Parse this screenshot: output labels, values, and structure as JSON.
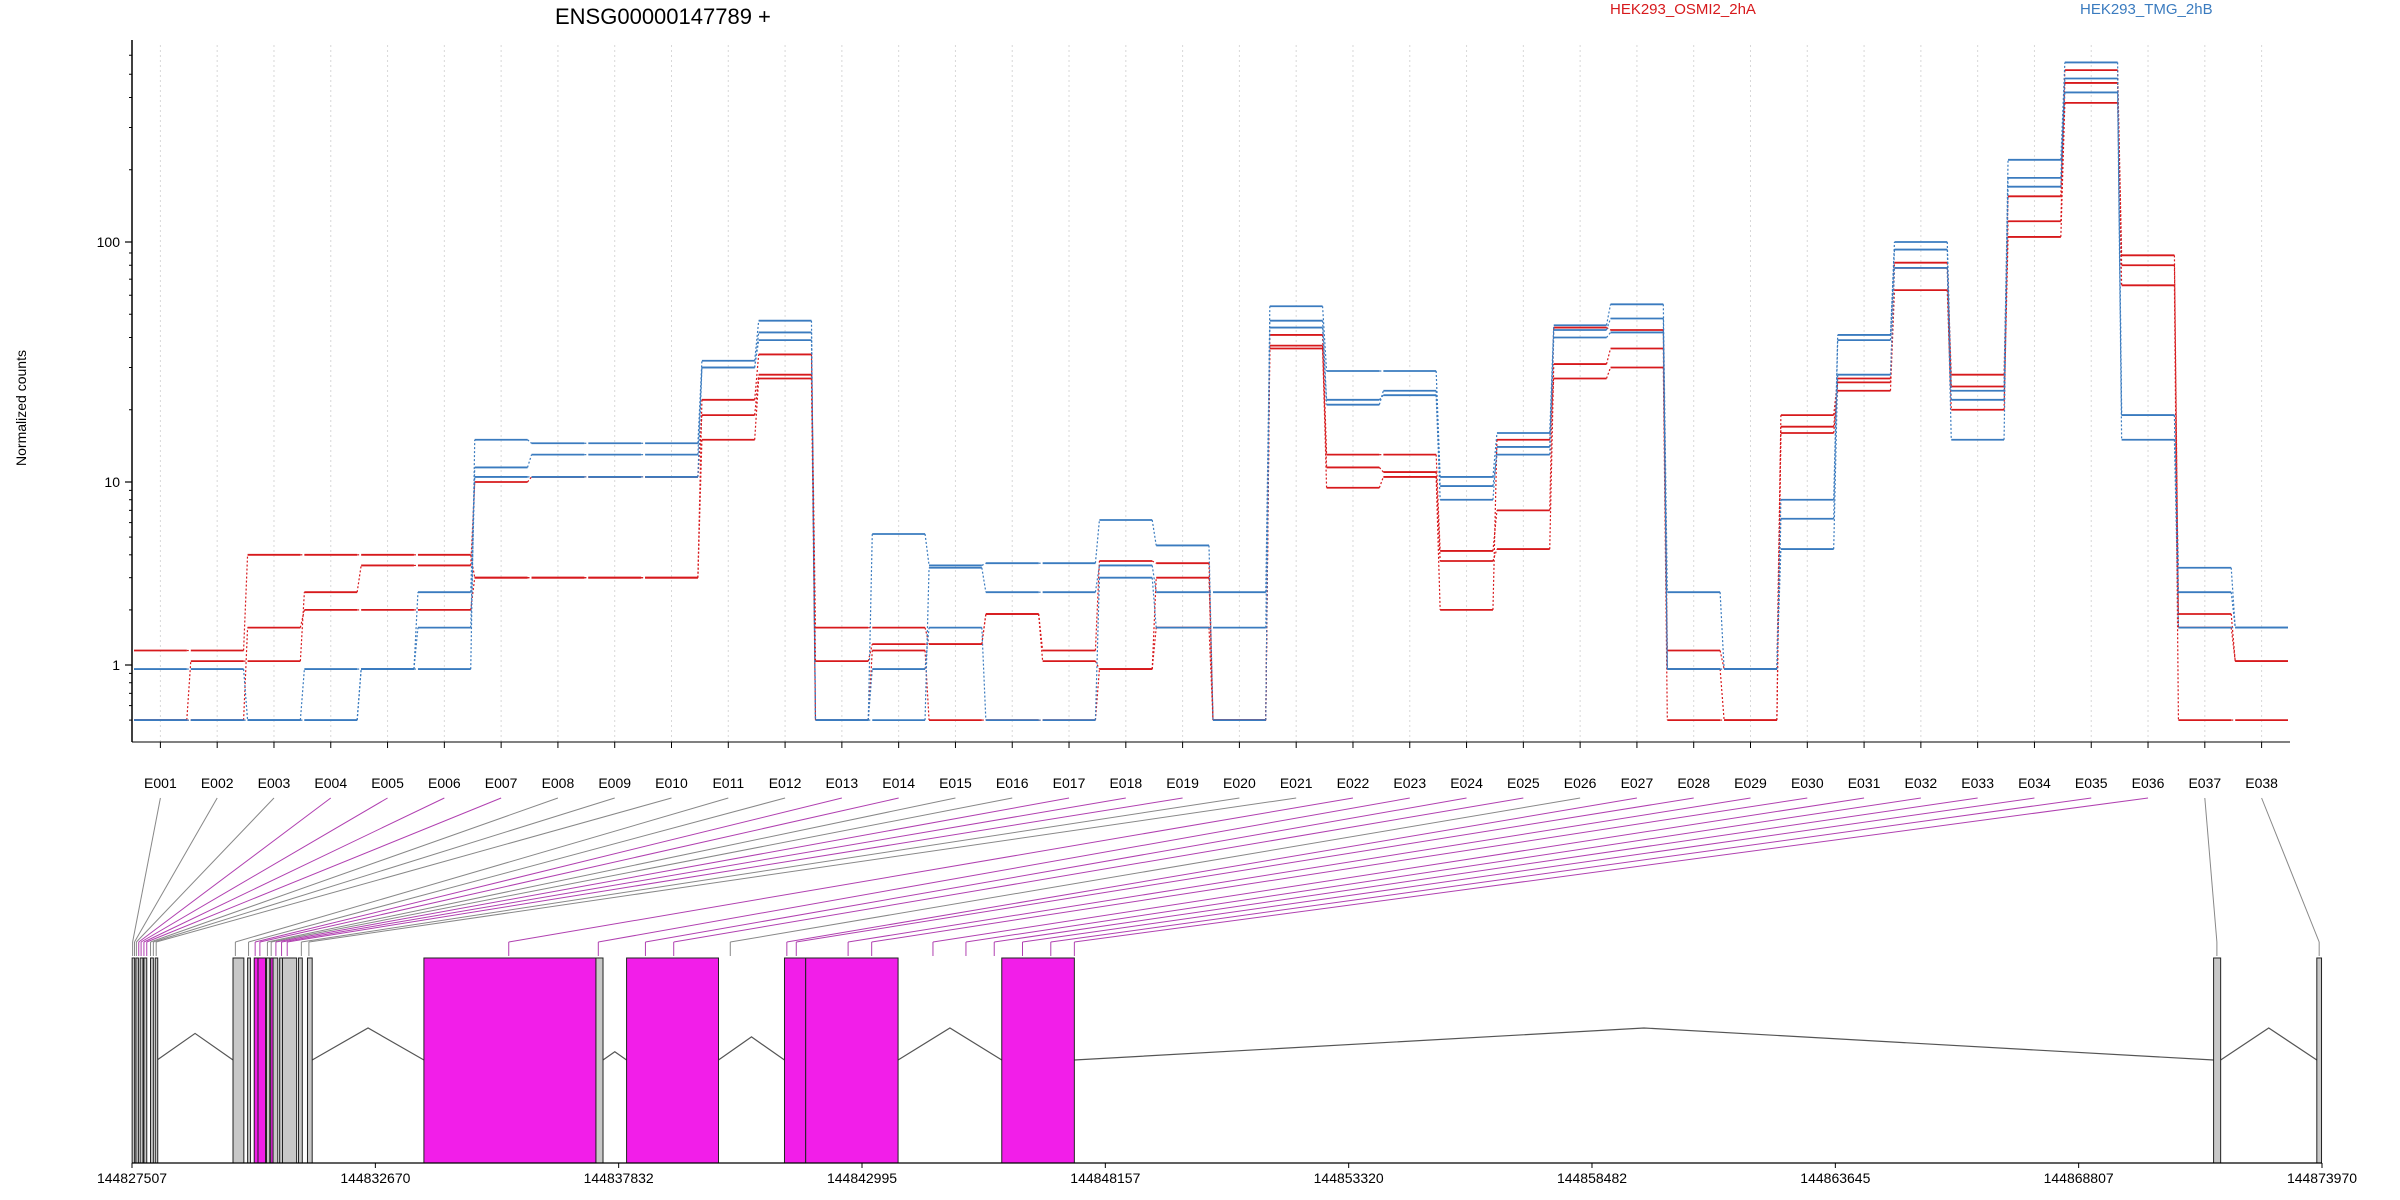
{
  "chart_data": {
    "type": "line",
    "title": "ENSG00000147789 +",
    "ylabel": "Normalized counts",
    "yscale": "log",
    "ylim": [
      0.5,
      620
    ],
    "yticks": [
      1,
      10,
      100
    ],
    "ytick_labels": [
      "1",
      "10",
      "100"
    ],
    "grid": "vertical dotted",
    "legend_placement": "top",
    "legend": [
      {
        "label": "HEK293_OSMI2_2hA",
        "color": "#d7191c"
      },
      {
        "label": "HEK293_TMG_2hB",
        "color": "#3a7bbf"
      }
    ],
    "categories": [
      "E001",
      "E002",
      "E003",
      "E004",
      "E005",
      "E006",
      "E007",
      "E008",
      "E009",
      "E010",
      "E011",
      "E012",
      "E013",
      "E014",
      "E015",
      "E016",
      "E017",
      "E018",
      "E019",
      "E020",
      "E021",
      "E022",
      "E023",
      "E024",
      "E025",
      "E026",
      "E027",
      "E028",
      "E029",
      "E030",
      "E031",
      "E032",
      "E033",
      "E034",
      "E035",
      "E036",
      "E037",
      "E038"
    ],
    "series": [
      {
        "group": "a",
        "color": "#d7191c",
        "values": [
          1.2,
          1.2,
          4.0,
          4.0,
          4.0,
          4.0,
          3.0,
          3.0,
          3.0,
          3.0,
          22,
          34,
          1.6,
          1.6,
          1.3,
          1.9,
          1.2,
          3.7,
          3.6,
          0.5,
          41,
          13,
          13,
          4.2,
          7.0,
          44,
          43,
          1.2,
          0.95,
          19,
          27,
          82,
          28,
          155,
          520,
          88,
          1.9,
          1.05
        ]
      },
      {
        "group": "a",
        "color": "#d7191c",
        "values": [
          0.5,
          1.05,
          1.05,
          2.5,
          3.5,
          3.5,
          10,
          10.5,
          10.5,
          10.5,
          19,
          28,
          1.05,
          1.3,
          1.3,
          1.9,
          1.05,
          0.95,
          3.0,
          0.5,
          36,
          11.5,
          11,
          3.7,
          4.3,
          31,
          36,
          0.95,
          0.5,
          17,
          26,
          78,
          25,
          122,
          460,
          80,
          1.6,
          1.05
        ]
      },
      {
        "group": "a",
        "color": "#d7191c",
        "values": [
          0.5,
          0.5,
          1.6,
          2.0,
          2.0,
          2.0,
          3.0,
          3.0,
          3.0,
          3.0,
          15,
          27,
          0.5,
          1.2,
          0.5,
          0.5,
          0.5,
          0.95,
          1.6,
          0.5,
          37,
          9.3,
          10.5,
          2.0,
          15,
          27,
          30,
          0.5,
          0.5,
          16,
          24,
          63,
          20,
          105,
          380,
          66,
          0.5,
          0.5
        ]
      },
      {
        "group": "b",
        "color": "#3a7bbf",
        "values": [
          0.95,
          0.95,
          0.5,
          0.95,
          0.95,
          0.95,
          15,
          14.5,
          14.5,
          14.5,
          32,
          47,
          0.5,
          5.2,
          3.5,
          3.6,
          3.6,
          6.2,
          4.5,
          0.5,
          54,
          29,
          29,
          10.5,
          16,
          45,
          55,
          2.5,
          0.95,
          8.0,
          41,
          100,
          24,
          220,
          560,
          19,
          3.4,
          1.6
        ]
      },
      {
        "group": "b",
        "color": "#3a7bbf",
        "values": [
          0.5,
          0.5,
          0.5,
          0.5,
          0.95,
          2.5,
          11.5,
          13,
          13,
          13,
          30,
          42,
          0.5,
          0.5,
          3.4,
          2.5,
          2.5,
          3.5,
          2.5,
          2.5,
          47,
          22,
          23,
          8.0,
          14,
          43,
          48,
          0.95,
          0.95,
          6.3,
          39,
          93,
          22,
          185,
          480,
          19,
          2.5,
          1.6
        ]
      },
      {
        "group": "b",
        "color": "#3a7bbf",
        "values": [
          0.5,
          0.5,
          0.5,
          0.5,
          0.95,
          1.6,
          10.5,
          10.5,
          10.5,
          10.5,
          30,
          39,
          0.5,
          0.95,
          1.6,
          0.5,
          0.5,
          3.0,
          1.6,
          1.6,
          44,
          21,
          24,
          9.5,
          13,
          40,
          42,
          0.95,
          0.95,
          4.3,
          28,
          78,
          15,
          170,
          420,
          15,
          1.6,
          1.6
        ]
      }
    ],
    "gene_model": {
      "xlim": [
        144827507,
        144873970
      ],
      "coord_ticks": [
        144827507,
        144832670,
        144837832,
        144842995,
        144848157,
        144853320,
        144858482,
        144863645,
        144868807,
        144873970
      ],
      "coord_tick_labels": [
        "144827507",
        "144832670",
        "144837832",
        "144842995",
        "144848157",
        "144853320",
        "144858482",
        "144863645",
        "144868807",
        "144873970"
      ],
      "highlight_color": "#f21ee9",
      "exons": [
        {
          "start": 144827510,
          "end": 144827560,
          "highlight": false
        },
        {
          "start": 144827590,
          "end": 144827640,
          "highlight": false
        },
        {
          "start": 144827680,
          "end": 144827740,
          "highlight": false
        },
        {
          "start": 144827760,
          "end": 144827820,
          "highlight": false
        },
        {
          "start": 144827900,
          "end": 144827960,
          "highlight": false
        },
        {
          "start": 144828000,
          "end": 144828040,
          "highlight": false
        },
        {
          "start": 144829650,
          "end": 144829880,
          "highlight": false
        },
        {
          "start": 144829960,
          "end": 144830020,
          "highlight": false
        },
        {
          "start": 144830100,
          "end": 144830180,
          "highlight": true
        },
        {
          "start": 144830180,
          "end": 144830340,
          "highlight": true
        },
        {
          "start": 144830360,
          "end": 144830430,
          "highlight": false
        },
        {
          "start": 144830450,
          "end": 144830500,
          "highlight": true
        },
        {
          "start": 144830500,
          "end": 144830600,
          "highlight": false
        },
        {
          "start": 144830640,
          "end": 144830700,
          "highlight": false
        },
        {
          "start": 144830700,
          "end": 144831000,
          "highlight": false
        },
        {
          "start": 144831040,
          "end": 144831120,
          "highlight": false
        },
        {
          "start": 144831230,
          "end": 144831330,
          "highlight": false
        },
        {
          "start": 144833700,
          "end": 144837350,
          "highlight": true
        },
        {
          "start": 144837350,
          "end": 144837500,
          "highlight": false
        },
        {
          "start": 144838000,
          "end": 144839950,
          "highlight": true
        },
        {
          "start": 144841350,
          "end": 144841800,
          "highlight": true
        },
        {
          "start": 144841800,
          "end": 144843760,
          "highlight": true
        },
        {
          "start": 144845960,
          "end": 144847500,
          "highlight": true
        },
        {
          "start": 144871670,
          "end": 144871820,
          "highlight": false
        },
        {
          "start": 144873860,
          "end": 144873960,
          "highlight": false
        }
      ],
      "connector_targets": [
        144827520,
        144827560,
        144827600,
        144827650,
        144827700,
        144827760,
        144827820,
        144827900,
        144827960,
        144828020,
        144829700,
        144829980,
        144830120,
        144830220,
        144830380,
        144830460,
        144830560,
        144830680,
        144830800,
        144831100,
        144831260,
        144835500,
        144837400,
        144838400,
        144839000,
        144840200,
        144841400,
        144841600,
        144842700,
        144843200,
        144844500,
        144845200,
        144845800,
        144846400,
        144847000,
        144847500,
        144871740,
        144873910
      ],
      "highlighted_exon_bins": [
        3,
        4,
        5,
        6,
        12,
        13,
        16,
        17,
        18,
        21,
        22,
        23,
        24,
        26,
        27,
        28,
        29,
        30,
        31,
        32,
        33,
        34,
        35
      ]
    }
  }
}
